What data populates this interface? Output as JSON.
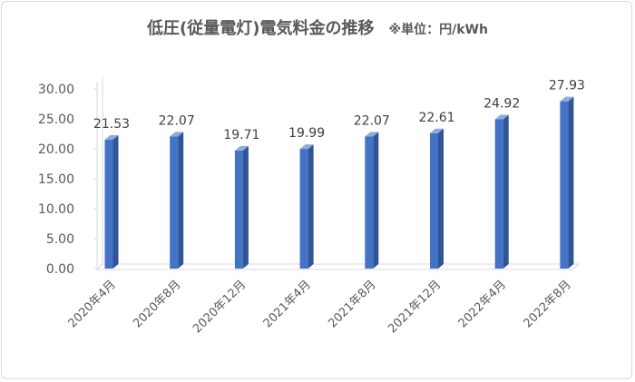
{
  "chart_data": {
    "type": "bar",
    "title": "低圧(従量電灯)電気料金の推移",
    "subtitle": "※単位：円/kWh",
    "categories": [
      "2020年4月",
      "2020年8月",
      "2020年12月",
      "2021年4月",
      "2021年8月",
      "2021年12月",
      "2022年4月",
      "2022年8月"
    ],
    "values": [
      21.53,
      22.07,
      19.71,
      19.99,
      22.07,
      22.61,
      24.92,
      27.93
    ],
    "value_labels": [
      "21.53",
      "22.07",
      "19.71",
      "19.99",
      "22.07",
      "22.61",
      "24.92",
      "27.93"
    ],
    "yticks": [
      "0.00",
      "5.00",
      "10.00",
      "15.00",
      "20.00",
      "25.00",
      "30.00"
    ],
    "ylim": [
      0,
      30
    ],
    "xlabel": "",
    "ylabel": "",
    "grid": false,
    "style": "3d-column",
    "colors": {
      "bar_front": "#4472C4",
      "bar_side": "#2F5597",
      "bar_top": "#8FAADC",
      "wall_line": "#d9d9d9",
      "text": "#595959"
    }
  }
}
